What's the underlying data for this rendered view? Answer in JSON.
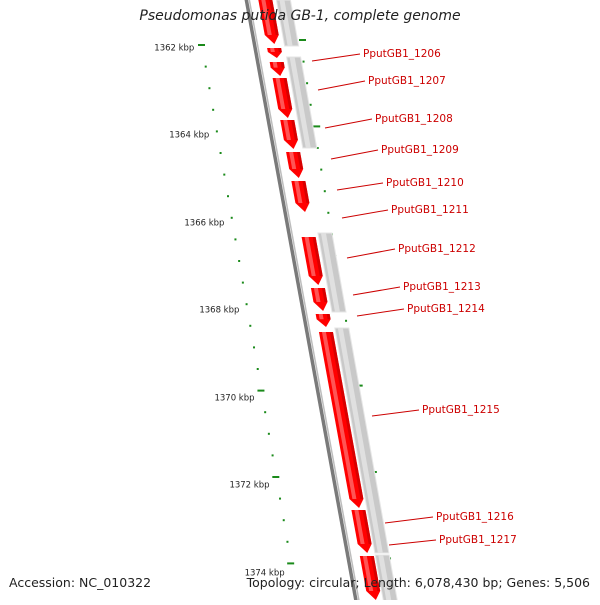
{
  "title": "Pseudomonas putida GB-1, complete genome",
  "footer": {
    "accession": "Accession: NC_010322",
    "summary": "Topology: circular; Length: 6,078,430 bp; Genes: 5,506"
  },
  "colors": {
    "feature": "#ff0000",
    "feature_light": "#ff6a6a",
    "feature_dark": "#c80000",
    "backbone": "#7a7a7a",
    "gene_outline": "#b4b4b4",
    "gene_label": "#cc0000",
    "tick": "#1a8a1a"
  },
  "axis": {
    "unit": "kbp",
    "labels": [
      {
        "kbp": 1362,
        "text": "1362 kbp"
      },
      {
        "kbp": 1364,
        "text": "1364 kbp"
      },
      {
        "kbp": 1366,
        "text": "1366 kbp"
      },
      {
        "kbp": 1368,
        "text": "1368 kbp"
      },
      {
        "kbp": 1370,
        "text": "1370 kbp"
      },
      {
        "kbp": 1372,
        "text": "1372 kbp"
      },
      {
        "kbp": 1374,
        "text": "1374 kbp"
      }
    ]
  },
  "genes": [
    {
      "name": "PputGB1_1206"
    },
    {
      "name": "PputGB1_1207"
    },
    {
      "name": "PputGB1_1208"
    },
    {
      "name": "PputGB1_1209"
    },
    {
      "name": "PputGB1_1210"
    },
    {
      "name": "PputGB1_1211"
    },
    {
      "name": "PputGB1_1212"
    },
    {
      "name": "PputGB1_1213"
    },
    {
      "name": "PputGB1_1214"
    },
    {
      "name": "PputGB1_1215"
    },
    {
      "name": "PputGB1_1216"
    },
    {
      "name": "PputGB1_1217"
    }
  ]
}
